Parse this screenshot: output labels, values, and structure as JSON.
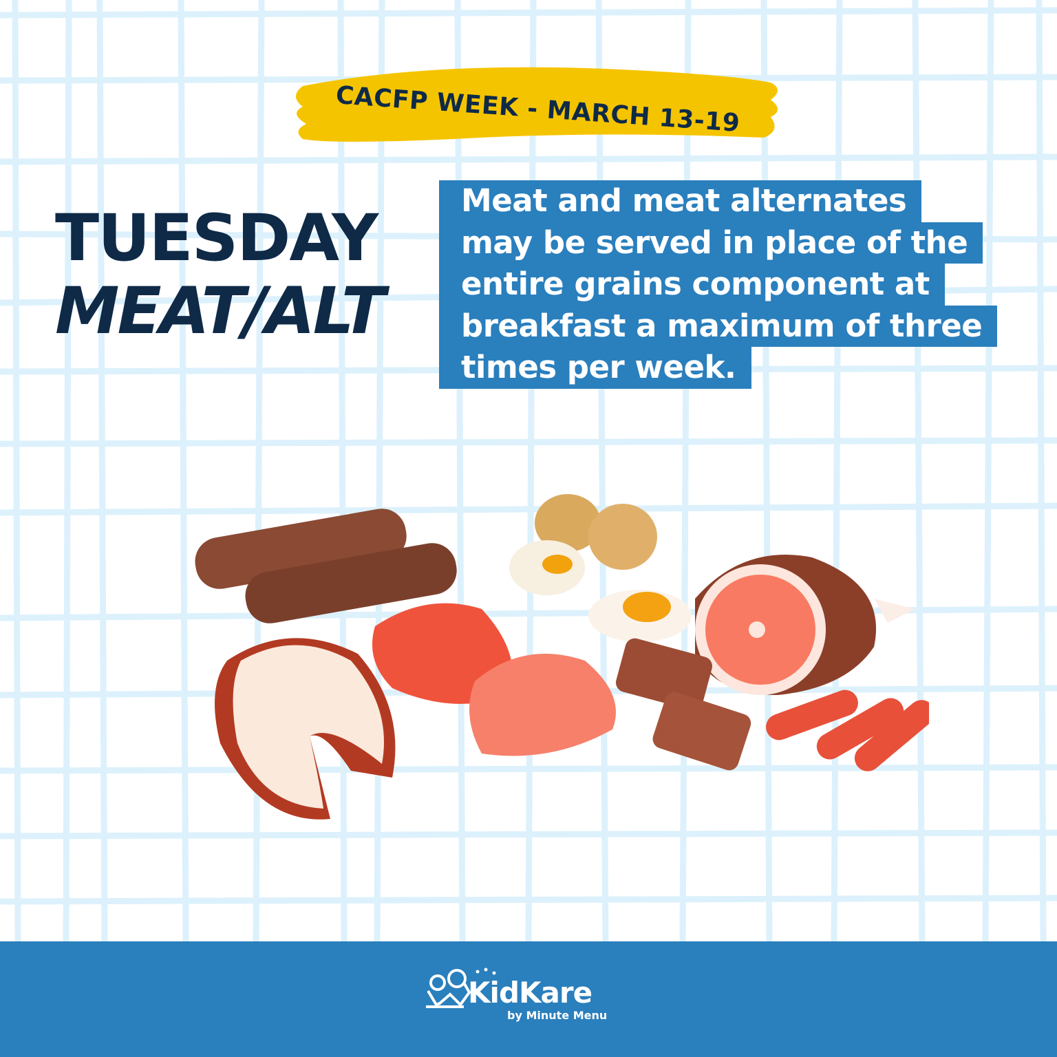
{
  "banner": {
    "text": "CACFP WEEK - MARCH 13-19"
  },
  "title": {
    "day": "TUESDAY",
    "topic": "MEAT/ALT"
  },
  "message": {
    "lines": [
      "Meat and meat alternates",
      "may be served in place of the",
      "entire grains component at",
      "breakfast a maximum of three",
      "times per week."
    ]
  },
  "footer": {
    "logo_name": "KidKare",
    "logo_sub": "by Minute Menu"
  },
  "colors": {
    "navy": "#0f2a47",
    "blue": "#2a7fbd",
    "yellow": "#f5c400",
    "grid": "#dcf1fc"
  }
}
